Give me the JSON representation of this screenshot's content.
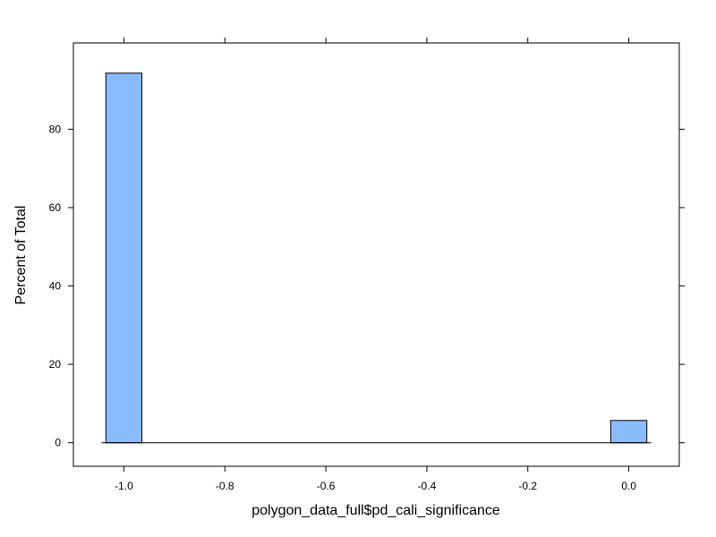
{
  "chart_data": {
    "type": "bar",
    "subtype": "histogram",
    "xlabel": "polygon_data_full$pd_cali_significance",
    "ylabel": "Percent of Total",
    "xlim": [
      -1.1,
      0.1
    ],
    "ylim": [
      -6,
      102
    ],
    "x_ticks": [
      -1.0,
      -0.8,
      -0.6,
      -0.4,
      -0.2,
      0.0
    ],
    "x_tick_labels": [
      "-1.0",
      "-0.8",
      "-0.6",
      "-0.4",
      "-0.2",
      "0.0"
    ],
    "y_ticks": [
      0,
      20,
      40,
      60,
      80
    ],
    "y_tick_labels": [
      "0",
      "20",
      "40",
      "60",
      "80"
    ],
    "bin_width": 0.0714,
    "bins": [
      {
        "x": -1.0,
        "value": 94.3
      },
      {
        "x": 0.0,
        "value": 5.7
      }
    ],
    "bar_color": "#89BBFF",
    "bar_edge_color": "#000000",
    "grid": false,
    "legend": "none"
  }
}
